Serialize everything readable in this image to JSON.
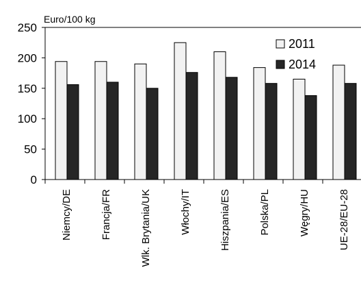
{
  "chart_data": {
    "type": "bar",
    "ylabel": "Euro/100 kg",
    "xlabel": "",
    "title": "",
    "ylim": [
      0,
      250
    ],
    "yticks": [
      0,
      50,
      100,
      150,
      200,
      250
    ],
    "categories": [
      "Niemcy/DE",
      "Francja/FR",
      "Wlk. Brytania/UK",
      "Włochy/IT",
      "Hiszpania/ES",
      "Polska/PL",
      "Węgry/HU",
      "UE-28/EU-28"
    ],
    "series": [
      {
        "name": "2011",
        "color": "#f2f2f2",
        "values": [
          194,
          194,
          190,
          225,
          210,
          184,
          165,
          188
        ]
      },
      {
        "name": "2014",
        "color": "#262626",
        "values": [
          156,
          160,
          150,
          176,
          168,
          158,
          138,
          158
        ]
      }
    ],
    "legend_position": "top-right",
    "grid": false
  }
}
